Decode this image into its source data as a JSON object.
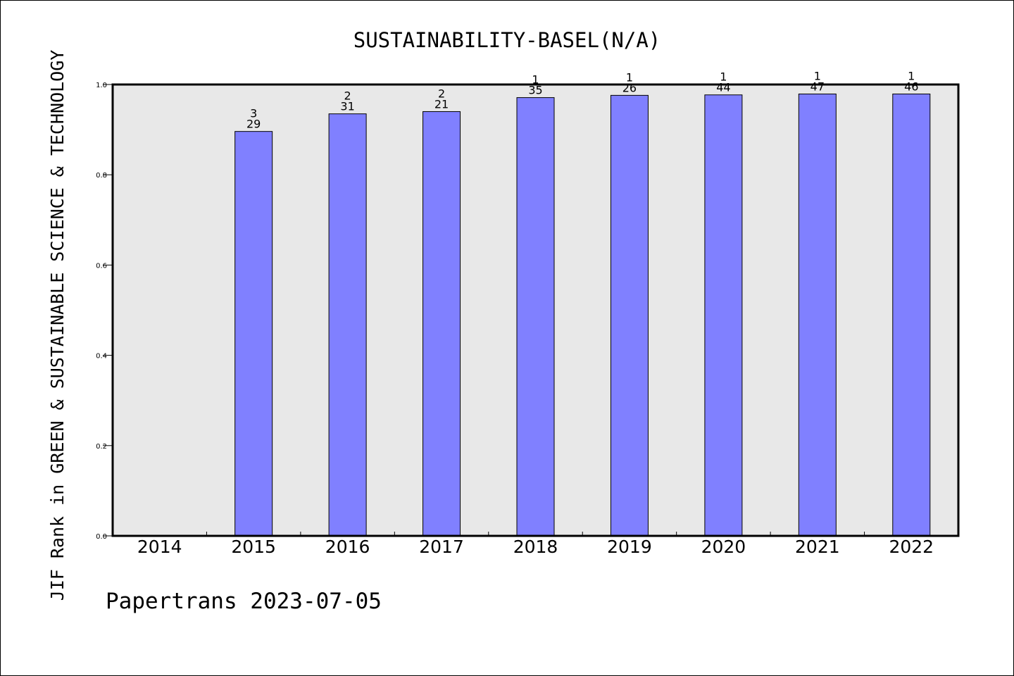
{
  "chart_data": {
    "type": "bar",
    "title": "SUSTAINABILITY-BASEL(N/A)",
    "ylabel": "JIF Rank in GREEN & SUSTAINABLE SCIENCE & TECHNOLOGY",
    "xlabel": "",
    "categories": [
      "2014",
      "2015",
      "2016",
      "2017",
      "2018",
      "2019",
      "2020",
      "2021",
      "2022"
    ],
    "values": [
      null,
      0.896,
      0.935,
      0.94,
      0.971,
      0.976,
      0.977,
      0.979,
      0.979
    ],
    "rank_labels": [
      "",
      "3",
      "2",
      "2",
      "1",
      "1",
      "1",
      "1",
      "1"
    ],
    "total_labels": [
      "",
      "29",
      "31",
      "21",
      "35",
      "26",
      "44",
      "47",
      "46"
    ],
    "ylim": [
      0,
      1.0
    ],
    "yticks": [
      "0.0",
      "0.2",
      "0.4",
      "0.6",
      "0.8",
      "1.0"
    ],
    "ytick_values": [
      0,
      0.2,
      0.4,
      0.6,
      0.8,
      1.0
    ],
    "grid": false,
    "legend": "none",
    "colors": {
      "bar": "#8080ff",
      "plot_bg": "#e8e8e8"
    }
  },
  "footer": "Papertrans 2023-07-05"
}
